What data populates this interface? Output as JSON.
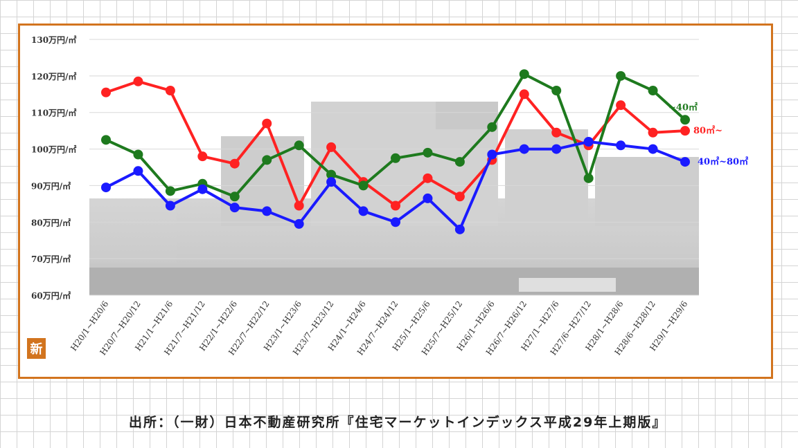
{
  "chart_data": {
    "type": "line",
    "categories": [
      "H20/1~H20/6",
      "H20/7~H20/12",
      "H21/1~H21/6",
      "H21/7~H21/12",
      "H22/1~H22/6",
      "H22/7~H22/12",
      "H23/1~H23/6",
      "H23/7~H23/12",
      "H24/1~H24/6",
      "H24/7~H24/12",
      "H25/1~H25/6",
      "H25/7~H25/12",
      "H26/1~H26/6",
      "H26/7~H26/12",
      "H27/1~H27/6",
      "H27/6~H27/12",
      "H28/1~H28/6",
      "H28/6~H28/12",
      "H29/1~H29/6"
    ],
    "y_ticks": [
      "130万円/㎡",
      "120万円/㎡",
      "110万円/㎡",
      "100万円/㎡",
      "90万円/㎡",
      "80万円/㎡",
      "70万円/㎡",
      "60万円/㎡"
    ],
    "ylim": [
      60,
      130
    ],
    "grid": true,
    "series": [
      {
        "name": "80㎡~",
        "color": "#ff2222",
        "values": [
          115.5,
          118.5,
          116,
          98,
          96,
          107,
          84.5,
          100.5,
          91,
          84.5,
          92,
          87,
          97,
          115,
          104.5,
          101,
          112,
          104.5,
          105
        ]
      },
      {
        "name": "~40㎡",
        "color": "#1e7a1e",
        "values": [
          102.5,
          98.5,
          88.5,
          90.5,
          87,
          97,
          101,
          93,
          90,
          97.5,
          99,
          96.5,
          106,
          120.5,
          116,
          92,
          120,
          116,
          108
        ]
      },
      {
        "name": "40㎡~80㎡",
        "color": "#1a1aff",
        "values": [
          89.5,
          94,
          84.5,
          89,
          84,
          83,
          79.5,
          91,
          83,
          80,
          86.5,
          78,
          98.5,
          100,
          100,
          102,
          101,
          100,
          96.5
        ]
      }
    ]
  },
  "badge_label": "新",
  "source_caption": "出所：（一財）日本不動産研究所『住宅マーケットインデックス平成29年上期版』"
}
